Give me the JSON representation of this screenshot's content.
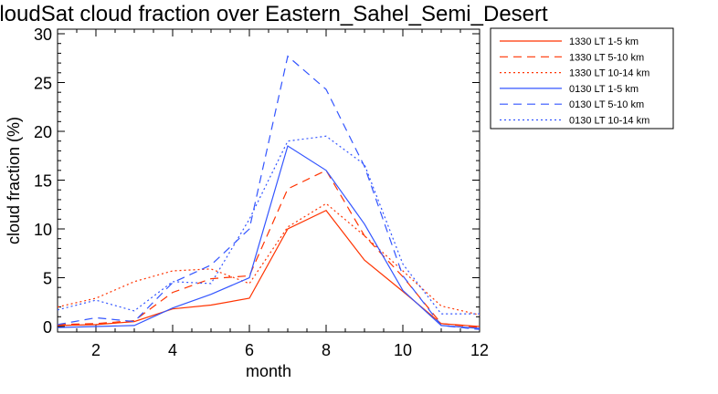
{
  "chart_data": {
    "type": "line",
    "title": "CloudSat cloud fraction over Eastern_Sahel_Semi_Desert",
    "xlabel": "month",
    "ylabel": "cloud fraction (%)",
    "xlim": [
      1,
      12
    ],
    "ylim": [
      0,
      30
    ],
    "xticks": [
      2,
      4,
      6,
      8,
      10,
      12
    ],
    "yticks": [
      0,
      5,
      10,
      15,
      20,
      25,
      30
    ],
    "x": [
      1,
      2,
      3,
      4,
      5,
      6,
      7,
      8,
      9,
      10,
      11,
      12
    ],
    "legend_position": "outside-right-top",
    "series": [
      {
        "name": "1330 LT 1-5 km",
        "color": "#ff3300",
        "dash": "solid",
        "values": [
          0.1,
          0.2,
          0.5,
          1.8,
          2.2,
          2.9,
          10.0,
          11.9,
          6.8,
          3.6,
          0.3,
          0.0
        ]
      },
      {
        "name": "1330 LT 5-10 km",
        "color": "#ff3300",
        "dash": "dashed",
        "values": [
          0.2,
          0.3,
          0.6,
          3.5,
          4.9,
          5.2,
          14.1,
          16.0,
          9.3,
          5.1,
          0.3,
          -0.1
        ]
      },
      {
        "name": "1330 LT 10-14 km",
        "color": "#ff3300",
        "dash": "dotted",
        "values": [
          2.0,
          2.9,
          4.6,
          5.7,
          5.9,
          4.4,
          10.2,
          12.6,
          9.3,
          5.7,
          2.1,
          1.2
        ]
      },
      {
        "name": "0130 LT 1-5 km",
        "color": "#3355ff",
        "dash": "solid",
        "values": [
          -0.1,
          0.0,
          0.1,
          1.9,
          3.3,
          5.0,
          18.5,
          16.0,
          10.5,
          3.7,
          0.1,
          -0.2
        ]
      },
      {
        "name": "0130 LT 5-10 km",
        "color": "#3355ff",
        "dash": "dashed",
        "values": [
          0.2,
          0.9,
          0.5,
          4.5,
          6.3,
          10.0,
          27.7,
          24.3,
          16.4,
          5.2,
          0.1,
          -0.3
        ]
      },
      {
        "name": "0130 LT 10-14 km",
        "color": "#3355ff",
        "dash": "dotted",
        "values": [
          1.7,
          2.7,
          1.6,
          4.6,
          4.4,
          11.0,
          19.0,
          19.5,
          16.6,
          6.4,
          1.3,
          1.3
        ]
      }
    ]
  }
}
